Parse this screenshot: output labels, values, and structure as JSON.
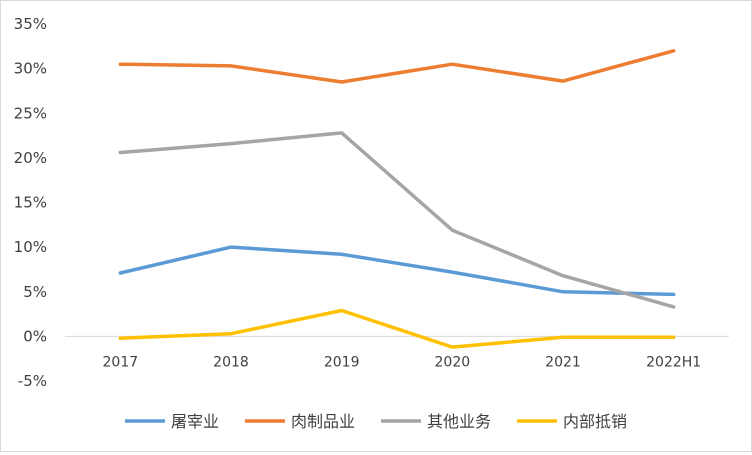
{
  "chart_data": {
    "type": "line",
    "title": "",
    "xlabel": "",
    "ylabel": "",
    "categories": [
      "2017",
      "2018",
      "2019",
      "2020",
      "2021",
      "2022H1"
    ],
    "ylim": [
      -0.05,
      0.35
    ],
    "yticks": [
      -0.05,
      0,
      0.05,
      0.1,
      0.15,
      0.2,
      0.25,
      0.3,
      0.35
    ],
    "ytick_labels": [
      "-5%",
      "0%",
      "5%",
      "10%",
      "15%",
      "20%",
      "25%",
      "30%",
      "35%"
    ],
    "grid": false,
    "legend_position": "bottom",
    "series": [
      {
        "name": "屠宰业",
        "color": "#5B9BD5",
        "values": [
          0.071,
          0.1,
          0.092,
          0.072,
          0.05,
          0.047
        ]
      },
      {
        "name": "肉制品业",
        "color": "#ED7D31",
        "values": [
          0.305,
          0.303,
          0.285,
          0.305,
          0.286,
          0.32
        ]
      },
      {
        "name": "其他业务",
        "color": "#A5A5A5",
        "values": [
          0.206,
          0.216,
          0.228,
          0.119,
          0.068,
          0.033
        ]
      },
      {
        "name": "内部抵销",
        "color": "#FFC000",
        "values": [
          -0.002,
          0.003,
          0.029,
          -0.012,
          -0.001,
          -0.001
        ]
      }
    ]
  }
}
